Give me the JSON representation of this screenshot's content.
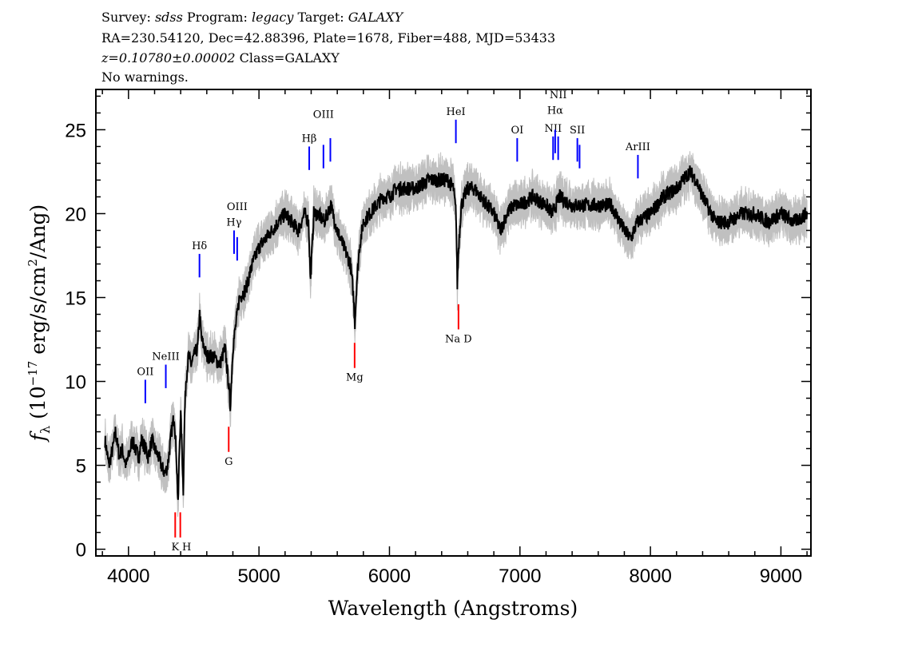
{
  "header": {
    "line1": {
      "survey_label": "Survey: ",
      "survey": "sdss",
      "program_label": " Program: ",
      "program": "legacy",
      "target_label": " Target: ",
      "target": "GALAXY"
    },
    "line2": "RA=230.54120, Dec=42.88396, Plate=1678, Fiber=488, MJD=53433",
    "line3": {
      "redshift": "z=0.10780±0.00002",
      "class": " Class=GALAXY"
    },
    "line4": "No warnings."
  },
  "chart_data": {
    "type": "line",
    "xlabel": "Wavelength (Angstroms)",
    "ylabel": {
      "symbol": "f",
      "sub": "λ",
      "pre": " (10",
      "exp": "−17",
      "mid": " erg/s/cm",
      "exp2": "2",
      "post": "/Ang)"
    },
    "xlim": [
      3750,
      9230
    ],
    "ylim": [
      -0.4,
      27.4
    ],
    "xticks": [
      4000,
      5000,
      6000,
      7000,
      8000,
      9000
    ],
    "yticks": [
      0,
      5,
      10,
      15,
      20,
      25
    ],
    "colors": {
      "flux": "#000000",
      "error": "#c0c0c0",
      "emission": "#0000ff",
      "absorption": "#ff0000"
    },
    "spectrum": {
      "wavelength": [
        3820,
        3850,
        3880,
        3900,
        3930,
        3950,
        3980,
        4000,
        4030,
        4050,
        4080,
        4100,
        4130,
        4150,
        4180,
        4200,
        4230,
        4250,
        4280,
        4300,
        4330,
        4350,
        4365,
        4380,
        4390,
        4400,
        4410,
        4420,
        4430,
        4440,
        4460,
        4480,
        4500,
        4530,
        4545,
        4560,
        4600,
        4650,
        4700,
        4740,
        4765,
        4780,
        4800,
        4850,
        4900,
        4950,
        5000,
        5050,
        5100,
        5150,
        5200,
        5250,
        5300,
        5350,
        5380,
        5395,
        5420,
        5450,
        5500,
        5550,
        5600,
        5650,
        5700,
        5720,
        5735,
        5750,
        5770,
        5800,
        5850,
        5900,
        5950,
        6000,
        6050,
        6100,
        6200,
        6300,
        6400,
        6450,
        6490,
        6510,
        6520,
        6530,
        6550,
        6600,
        6650,
        6700,
        6800,
        6850,
        6900,
        6950,
        7000,
        7100,
        7200,
        7250,
        7300,
        7400,
        7500,
        7600,
        7700,
        7800,
        7850,
        7900,
        8000,
        8100,
        8200,
        8300,
        8350,
        8400,
        8500,
        8600,
        8700,
        8800,
        8900,
        9000,
        9100,
        9200
      ],
      "flux": [
        6.5,
        5,
        6,
        7,
        5.5,
        6,
        5,
        5.5,
        6.5,
        6,
        5.5,
        6.5,
        6,
        5.5,
        6.5,
        6,
        5.5,
        5,
        4.5,
        5,
        7,
        8,
        6,
        2.5,
        6,
        8,
        6,
        3.5,
        8,
        10,
        11.5,
        11,
        11.5,
        12,
        14,
        12.5,
        11.5,
        11.5,
        11,
        12,
        10,
        8.5,
        12,
        15,
        15.5,
        17,
        18,
        18.5,
        19,
        19.5,
        20,
        19.5,
        19,
        20,
        19.5,
        16,
        20,
        20,
        19.5,
        20.5,
        19,
        18,
        17,
        15.5,
        13.5,
        16,
        18,
        19.5,
        20,
        20.5,
        21,
        21,
        21.5,
        21.5,
        21.5,
        22,
        22,
        22,
        21.5,
        20,
        15.8,
        18,
        20.5,
        21.5,
        21.5,
        21,
        20,
        19,
        20,
        20.5,
        20.5,
        21,
        20.5,
        20,
        21,
        20.5,
        20.5,
        20.5,
        20.5,
        19,
        18.5,
        19.5,
        20,
        21,
        21.5,
        22.5,
        22,
        21,
        19.5,
        19.5,
        20,
        20,
        19.5,
        20,
        19.5,
        20
      ],
      "error_typical": 0.9
    },
    "emission_lines": [
      {
        "label": "OII",
        "wavelength": 4129
      },
      {
        "label": "NeIII",
        "wavelength": 4286
      },
      {
        "label": "Hδ",
        "wavelength": 4544
      },
      {
        "label": "Hγ",
        "wavelength": 4809
      },
      {
        "label": "OIII",
        "wavelength": 4833
      },
      {
        "label": "Hβ",
        "wavelength": 5385
      },
      {
        "label": "OIII",
        "wavelength": 5494
      },
      {
        "label": "",
        "wavelength": 5547
      },
      {
        "label": "HeI",
        "wavelength": 6509
      },
      {
        "label": "OI",
        "wavelength": 6979
      },
      {
        "label": "NII",
        "wavelength": 7254
      },
      {
        "label": "Hα",
        "wavelength": 7270
      },
      {
        "label": "NII",
        "wavelength": 7293
      },
      {
        "label": "SII",
        "wavelength": 7440
      },
      {
        "label": "",
        "wavelength": 7457
      },
      {
        "label": "ArIII",
        "wavelength": 7904
      }
    ],
    "absorption_lines": [
      {
        "label": "K",
        "wavelength": 4358
      },
      {
        "label": "H",
        "wavelength": 4397
      },
      {
        "label": "G",
        "wavelength": 4768
      },
      {
        "label": "Mg",
        "wavelength": 5733
      },
      {
        "label": "Na  D",
        "wavelength": 6529
      }
    ]
  }
}
